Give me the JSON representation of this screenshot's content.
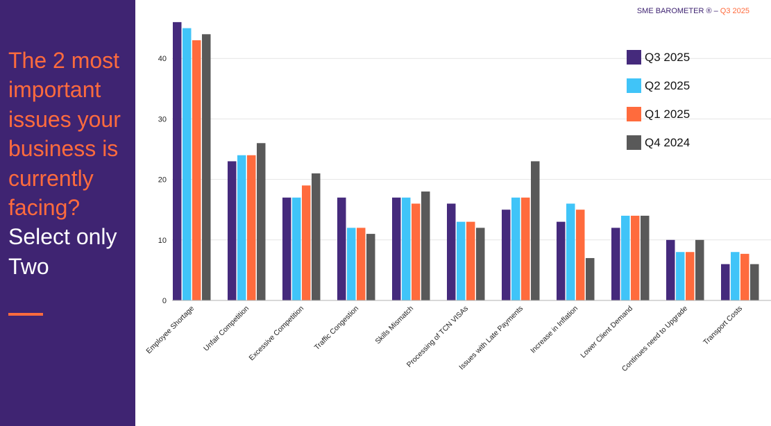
{
  "side_panel": {
    "question": "The 2 most important issues your business is currently facing?",
    "instruction": "Select only Two"
  },
  "brand": {
    "name": "SME BAROMETER ® – ",
    "period": "Q3 2025"
  },
  "chart_data": {
    "type": "bar",
    "title": "",
    "xlabel": "",
    "ylabel": "",
    "ylim": [
      0,
      50
    ],
    "yticks": [
      0,
      10,
      20,
      30,
      40
    ],
    "grid": true,
    "legend_position": "top-right",
    "categories": [
      "Employee Shortage",
      "Unfair Competition",
      "Excessive Competition",
      "Traffic Congestion",
      "Skills Mismatch",
      "Processing of TCN VISAs",
      "Issues with Late Payments",
      "Increase in Inflation",
      "Lower Client Demand",
      "Continues need to Upgrade",
      "Transport Costs"
    ],
    "series": [
      {
        "name": "Q3 2025",
        "color": "#452a7c",
        "values": [
          46,
          23,
          17,
          17,
          17,
          16,
          15,
          13,
          12,
          10,
          6
        ]
      },
      {
        "name": "Q2 2025",
        "color": "#40c4f8",
        "values": [
          45,
          24,
          17,
          12,
          17,
          13,
          17,
          16,
          14,
          8,
          8
        ]
      },
      {
        "name": "Q1 2025",
        "color": "#ff6b3d",
        "values": [
          43,
          24,
          19,
          12,
          16,
          13,
          17,
          15,
          14,
          8,
          7.7
        ]
      },
      {
        "name": "Q4 2024",
        "color": "#595959",
        "values": [
          44,
          26,
          21,
          11,
          18,
          12,
          23,
          7,
          14,
          10,
          6
        ]
      }
    ]
  }
}
